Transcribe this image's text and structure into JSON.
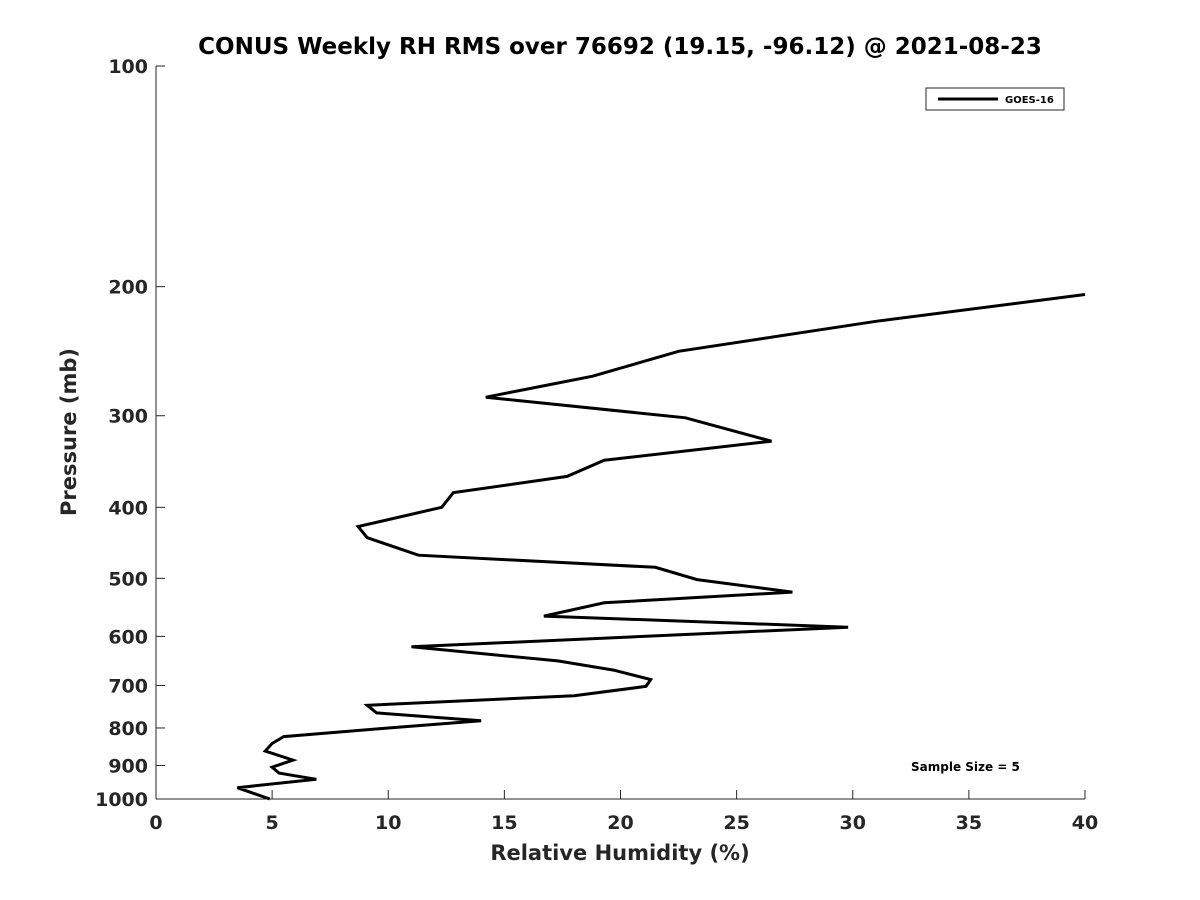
{
  "chart_data": {
    "type": "line",
    "title": "CONUS Weekly RH RMS over 76692 (19.15, -96.12) @ 2021-08-23",
    "xlabel": "Relative Humidity (%)",
    "ylabel": "Pressure (mb)",
    "xlim": [
      0,
      40
    ],
    "ylim": [
      100,
      1000
    ],
    "y_scale": "log",
    "y_reversed": true,
    "x_ticks": [
      0,
      5,
      10,
      15,
      20,
      25,
      30,
      35,
      40
    ],
    "y_ticks": [
      100,
      200,
      300,
      400,
      500,
      600,
      700,
      800,
      900,
      1000
    ],
    "grid": false,
    "legend_position": "top-right",
    "series": [
      {
        "name": "GOES-16",
        "color": "#000000",
        "points": [
          {
            "x": 40.0,
            "y": 205
          },
          {
            "x": 31.0,
            "y": 223
          },
          {
            "x": 22.5,
            "y": 245
          },
          {
            "x": 18.8,
            "y": 265
          },
          {
            "x": 14.2,
            "y": 283
          },
          {
            "x": 22.8,
            "y": 302
          },
          {
            "x": 26.5,
            "y": 325
          },
          {
            "x": 19.3,
            "y": 345
          },
          {
            "x": 17.7,
            "y": 363
          },
          {
            "x": 12.8,
            "y": 382
          },
          {
            "x": 12.3,
            "y": 400
          },
          {
            "x": 8.7,
            "y": 425
          },
          {
            "x": 9.1,
            "y": 440
          },
          {
            "x": 11.3,
            "y": 465
          },
          {
            "x": 21.5,
            "y": 483
          },
          {
            "x": 23.3,
            "y": 502
          },
          {
            "x": 27.4,
            "y": 522
          },
          {
            "x": 19.3,
            "y": 540
          },
          {
            "x": 16.7,
            "y": 563
          },
          {
            "x": 29.8,
            "y": 583
          },
          {
            "x": 11.0,
            "y": 620
          },
          {
            "x": 17.3,
            "y": 648
          },
          {
            "x": 19.7,
            "y": 667
          },
          {
            "x": 21.3,
            "y": 687
          },
          {
            "x": 21.1,
            "y": 702
          },
          {
            "x": 18.0,
            "y": 723
          },
          {
            "x": 9.1,
            "y": 745
          },
          {
            "x": 9.5,
            "y": 763
          },
          {
            "x": 14.0,
            "y": 782
          },
          {
            "x": 10.0,
            "y": 800
          },
          {
            "x": 5.5,
            "y": 822
          },
          {
            "x": 5.0,
            "y": 840
          },
          {
            "x": 4.7,
            "y": 860
          },
          {
            "x": 5.9,
            "y": 885
          },
          {
            "x": 5.0,
            "y": 905
          },
          {
            "x": 5.3,
            "y": 922
          },
          {
            "x": 6.9,
            "y": 940
          },
          {
            "x": 3.5,
            "y": 965
          },
          {
            "x": 4.9,
            "y": 1000
          }
        ]
      }
    ],
    "annotations": [
      "Sample Size = 5"
    ]
  }
}
